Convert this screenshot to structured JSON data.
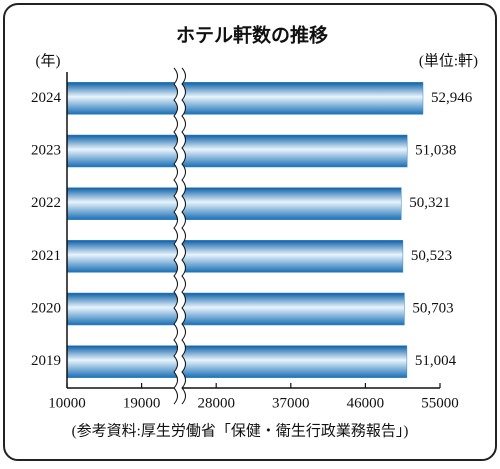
{
  "chart_data": {
    "type": "bar",
    "orientation": "horizontal",
    "title": "ホテル軒数の推移",
    "y_axis_label": "(年)",
    "unit_label": "(単位:軒)",
    "source": "(参考資料:厚生労働省「保健・衛生行政業務報告」)",
    "categories": [
      "2024",
      "2023",
      "2022",
      "2021",
      "2020",
      "2019"
    ],
    "values": [
      52946,
      51038,
      50321,
      50523,
      50703,
      51004
    ],
    "value_labels": [
      "52,946",
      "51,038",
      "50,321",
      "50,523",
      "50,703",
      "51,004"
    ],
    "color": "#2f86c8",
    "xlim": [
      10000,
      55000
    ],
    "xticks": [
      10000,
      19000,
      28000,
      37000,
      46000,
      55000
    ],
    "axis_break": true
  }
}
